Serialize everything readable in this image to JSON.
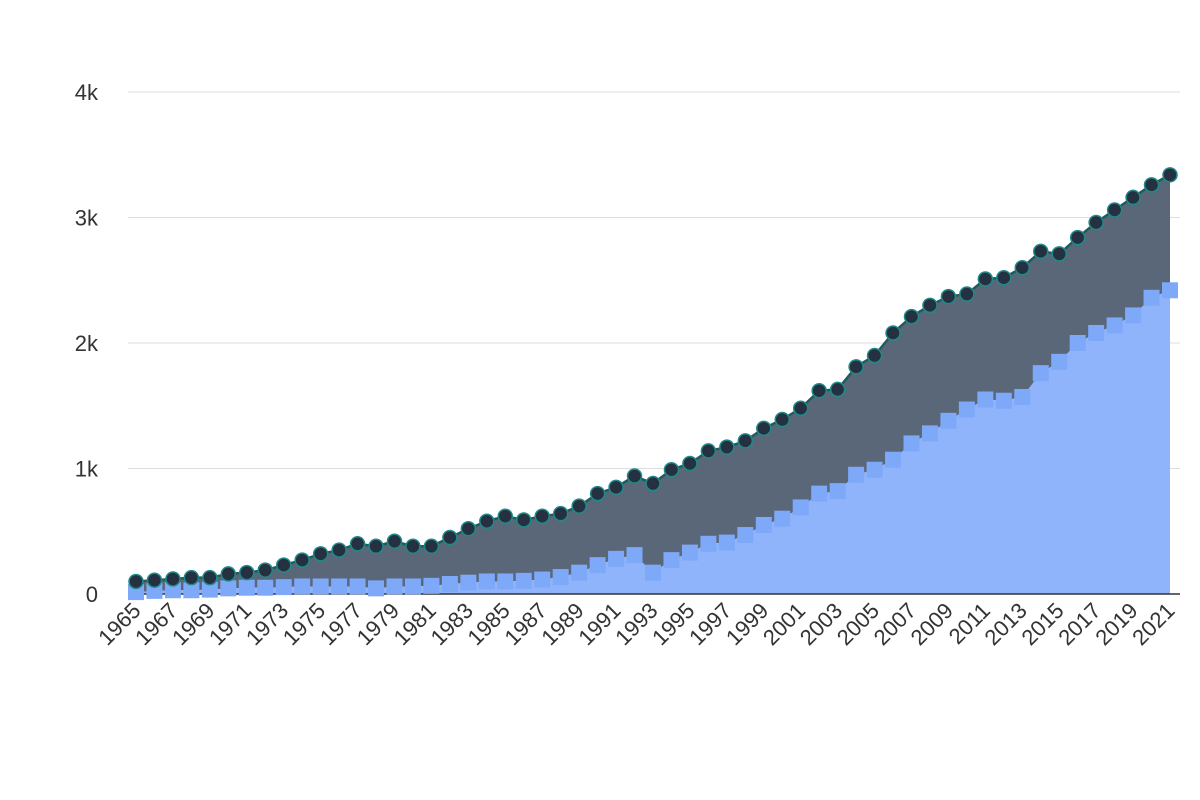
{
  "chart_data": {
    "type": "area",
    "stacked": true,
    "grid": true,
    "legend": "none",
    "xlim": [
      1965,
      2021
    ],
    "ylim": [
      0,
      4000
    ],
    "yticks": [
      0,
      1000,
      2000,
      3000,
      4000
    ],
    "ytick_labels": [
      "0",
      "1k",
      "2k",
      "3k",
      "4k"
    ],
    "xticks": [
      1965,
      1967,
      1969,
      1971,
      1973,
      1975,
      1977,
      1979,
      1981,
      1983,
      1985,
      1987,
      1989,
      1991,
      1993,
      1995,
      1997,
      1999,
      2001,
      2003,
      2005,
      2007,
      2009,
      2011,
      2013,
      2015,
      2017,
      2019,
      2021
    ],
    "x": [
      1965,
      1966,
      1967,
      1968,
      1969,
      1970,
      1971,
      1972,
      1973,
      1974,
      1975,
      1976,
      1977,
      1978,
      1979,
      1980,
      1981,
      1982,
      1983,
      1984,
      1985,
      1986,
      1987,
      1988,
      1989,
      1990,
      1991,
      1992,
      1993,
      1994,
      1995,
      1996,
      1997,
      1998,
      1999,
      2000,
      2001,
      2002,
      2003,
      2004,
      2005,
      2006,
      2007,
      2008,
      2009,
      2010,
      2011,
      2012,
      2013,
      2014,
      2015,
      2016,
      2017,
      2018,
      2019,
      2020,
      2021
    ],
    "series": [
      {
        "color": "#8fb4fb",
        "marker": "square",
        "marker_color": "#7ea8f8",
        "values": [
          15,
          25,
          30,
          30,
          35,
          45,
          50,
          50,
          55,
          60,
          60,
          60,
          60,
          45,
          60,
          60,
          65,
          80,
          90,
          100,
          100,
          105,
          115,
          135,
          170,
          230,
          280,
          310,
          170,
          270,
          330,
          400,
          410,
          470,
          550,
          600,
          690,
          800,
          820,
          950,
          990,
          1070,
          1200,
          1280,
          1380,
          1470,
          1550,
          1540,
          1570,
          1760,
          1850,
          2000,
          2080,
          2140,
          2220,
          2360,
          2420
        ]
      },
      {
        "color": "#5a6778",
        "marker": "circle",
        "marker_color": "#253140",
        "line_color": "#1f5c5c",
        "totals": [
          100,
          110,
          120,
          130,
          130,
          160,
          170,
          190,
          230,
          270,
          320,
          350,
          400,
          380,
          420,
          380,
          380,
          450,
          520,
          580,
          620,
          590,
          620,
          640,
          700,
          800,
          850,
          940,
          880,
          990,
          1040,
          1140,
          1170,
          1220,
          1320,
          1390,
          1480,
          1620,
          1630,
          1810,
          1900,
          2080,
          2210,
          2300,
          2370,
          2390,
          2510,
          2520,
          2600,
          2730,
          2710,
          2840,
          2960,
          3060,
          3160,
          3260,
          3340
        ]
      }
    ]
  }
}
